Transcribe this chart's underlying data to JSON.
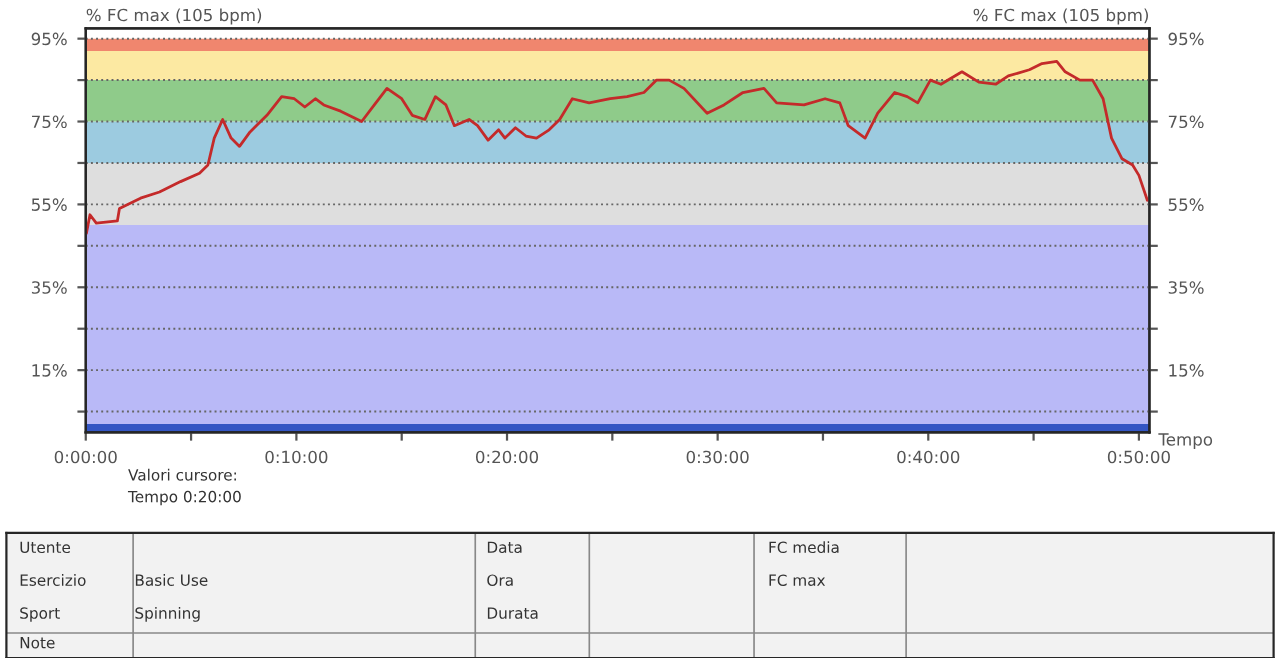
{
  "chart_data": {
    "type": "line",
    "ylabel": "% FC max (105 bpm)",
    "y2label": "% FC max (105 bpm)",
    "xlabel": "Tempo",
    "x": [
      0.03,
      0.2,
      0.5,
      1.5,
      1.6,
      2.6,
      3.5,
      4.5,
      5.4,
      5.8,
      6.1,
      6.5,
      6.9,
      7.3,
      7.8,
      8.6,
      9.3,
      9.9,
      10.4,
      10.9,
      11.3,
      12.1,
      13.1,
      13.7,
      14.3,
      15.0,
      15.5,
      16.1,
      16.6,
      17.1,
      17.5,
      18.2,
      18.6,
      19.1,
      19.6,
      19.9,
      20.4,
      20.9,
      21.4,
      22.0,
      22.5,
      23.1,
      23.9,
      24.9,
      25.7,
      26.5,
      27.1,
      27.7,
      28.4,
      29.5,
      30.3,
      31.2,
      32.2,
      32.8,
      34.1,
      35.1,
      35.8,
      36.2,
      37.0,
      37.6,
      38.4,
      39.0,
      39.5,
      40.1,
      40.6,
      41.6,
      42.4,
      43.2,
      43.8,
      44.8,
      45.4,
      46.1,
      46.5,
      47.2,
      47.8,
      48.3,
      48.7,
      49.2,
      49.7,
      50.0,
      50.4
    ],
    "series": [
      {
        "color": "#c42a2a",
        "values": [
          48,
          52.5,
          50.5,
          51,
          54,
          56.5,
          58,
          60.5,
          62.5,
          64.5,
          71,
          75.5,
          71,
          69,
          72.5,
          76.5,
          81,
          80.5,
          78.5,
          80.5,
          79,
          77.5,
          75,
          79,
          83,
          80.5,
          76.5,
          75.5,
          81,
          79,
          74,
          75.5,
          74,
          70.5,
          73,
          71,
          73.5,
          71.5,
          71,
          73,
          75.5,
          80.5,
          79.5,
          80.5,
          81,
          82,
          85,
          85,
          83,
          77,
          79,
          82,
          83,
          79.5,
          79,
          80.5,
          79.5,
          74,
          71,
          77,
          82,
          81,
          79.5,
          85,
          84,
          87,
          84.5,
          84,
          86,
          87.5,
          89,
          89.5,
          87,
          85,
          85,
          80.5,
          71,
          66,
          64.5,
          62,
          56
        ]
      }
    ],
    "xlim": [
      0,
      50.5
    ],
    "xticks": [
      {
        "value": 0,
        "label": "0:00:00"
      },
      {
        "value": 5,
        "label": null
      },
      {
        "value": 10,
        "label": "0:10:00"
      },
      {
        "value": 15,
        "label": null
      },
      {
        "value": 20,
        "label": "0:20:00"
      },
      {
        "value": 25,
        "label": null
      },
      {
        "value": 30,
        "label": "0:30:00"
      },
      {
        "value": 35,
        "label": null
      },
      {
        "value": 40,
        "label": "0:40:00"
      },
      {
        "value": 45,
        "label": null
      },
      {
        "value": 50,
        "label": "0:50:00"
      }
    ],
    "ylim": [
      0,
      97.5
    ],
    "yticks": [
      {
        "value": 5,
        "label": null
      },
      {
        "value": 15,
        "label": "15%"
      },
      {
        "value": 25,
        "label": null
      },
      {
        "value": 35,
        "label": "35%"
      },
      {
        "value": 45,
        "label": null
      },
      {
        "value": 55,
        "label": "55%"
      },
      {
        "value": 65,
        "label": null
      },
      {
        "value": 75,
        "label": "75%"
      },
      {
        "value": 85,
        "label": null
      },
      {
        "value": 95,
        "label": "95%"
      }
    ],
    "y2lim": [
      0,
      97.5
    ],
    "y2ticks": [
      {
        "value": 5,
        "label": null
      },
      {
        "value": 15,
        "label": "15%"
      },
      {
        "value": 25,
        "label": null
      },
      {
        "value": 35,
        "label": "35%"
      },
      {
        "value": 45,
        "label": null
      },
      {
        "value": 55,
        "label": "55%"
      },
      {
        "value": 65,
        "label": null
      },
      {
        "value": 75,
        "label": "75%"
      },
      {
        "value": 85,
        "label": null
      },
      {
        "value": 95,
        "label": "95%"
      }
    ],
    "bands": [
      {
        "axis": "y",
        "from": 0,
        "to": 2,
        "color": "#3456c4"
      },
      {
        "axis": "y",
        "from": 2,
        "to": 50,
        "color": "#b9b9f7"
      },
      {
        "axis": "y",
        "from": 50,
        "to": 65,
        "color": "#dedede"
      },
      {
        "axis": "y",
        "from": 65,
        "to": 75,
        "color": "#9ccbe0"
      },
      {
        "axis": "y",
        "from": 75,
        "to": 85,
        "color": "#8fcb8a"
      },
      {
        "axis": "y",
        "from": 85,
        "to": 92,
        "color": "#fce9a2"
      },
      {
        "axis": "y",
        "from": 92,
        "to": 95,
        "color": "#f0866e"
      }
    ],
    "grid": "y",
    "line_style": "solid",
    "marker": "none",
    "annotations": [
      "Valori cursore:",
      "Tempo 0:20:00",
      "Utente",
      "Esercizio",
      "Sport",
      "Note",
      "Basic Use",
      "Spinning",
      "Data",
      "Ora",
      "Durata",
      "FC media",
      "FC max"
    ]
  }
}
